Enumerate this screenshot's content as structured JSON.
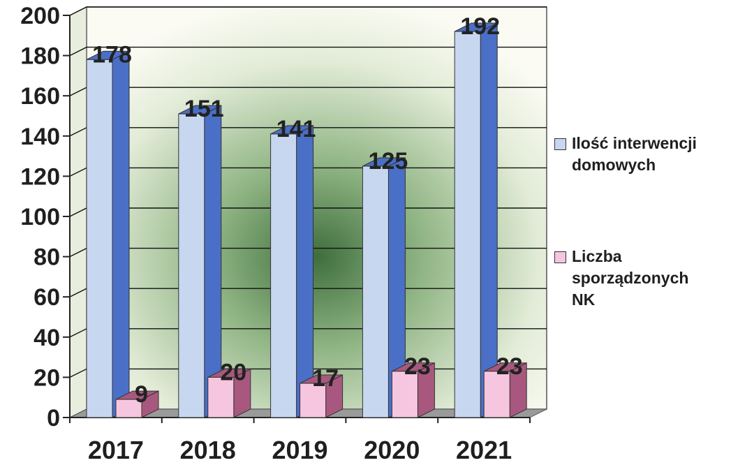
{
  "chart_data": {
    "type": "bar",
    "categories": [
      "2017",
      "2018",
      "2019",
      "2020",
      "2021"
    ],
    "series": [
      {
        "name": "Ilość interwencji\ndomowych",
        "values": [
          178,
          151,
          141,
          125,
          192
        ],
        "color": "#c7d7ef",
        "side_color": "#4a6fc6"
      },
      {
        "name": "Liczba\nsporządzonych\nNK",
        "values": [
          9,
          20,
          17,
          23,
          23
        ],
        "color": "#f6c6e0",
        "side_color": "#a8587e"
      }
    ],
    "y_ticks": [
      "0",
      "20",
      "40",
      "60",
      "80",
      "100",
      "120",
      "140",
      "160",
      "180",
      "200"
    ],
    "ylim": [
      0,
      200
    ],
    "grid": true,
    "legend_position": "right",
    "data_labels": true,
    "title": "",
    "xlabel": "",
    "ylabel": ""
  }
}
